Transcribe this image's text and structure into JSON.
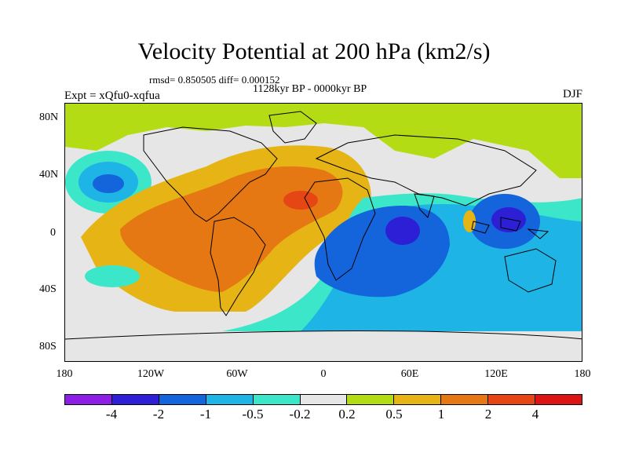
{
  "title": "Velocity Potential at 200 hPa (km2/s)",
  "stats": "rmsd= 0.850505 diff= 0.000152",
  "subtitle": "1128kyr BP - 0000kyr BP",
  "experiment": "Expt = xQfu0-xqfua",
  "season": "DJF",
  "map": {
    "lat_labels": [
      "80N",
      "40N",
      "0",
      "40S",
      "80S"
    ],
    "lon_labels": [
      "180",
      "120W",
      "60W",
      "0",
      "60E",
      "120E",
      "180"
    ]
  },
  "colorbar": {
    "colors": [
      "#8c1ee6",
      "#2d1fd6",
      "#1464dc",
      "#1eb4e6",
      "#3ce6c8",
      "#e6e6e6",
      "#b4dc14",
      "#e6b414",
      "#e67814",
      "#e64614",
      "#dc1414"
    ],
    "labels": [
      "-4",
      "-2",
      "-1",
      "-0.5",
      "-0.2",
      "0.2",
      "0.5",
      "1",
      "2",
      "4"
    ]
  },
  "colors": {
    "land_outline": "#000000",
    "background": "#e6e6e6"
  }
}
